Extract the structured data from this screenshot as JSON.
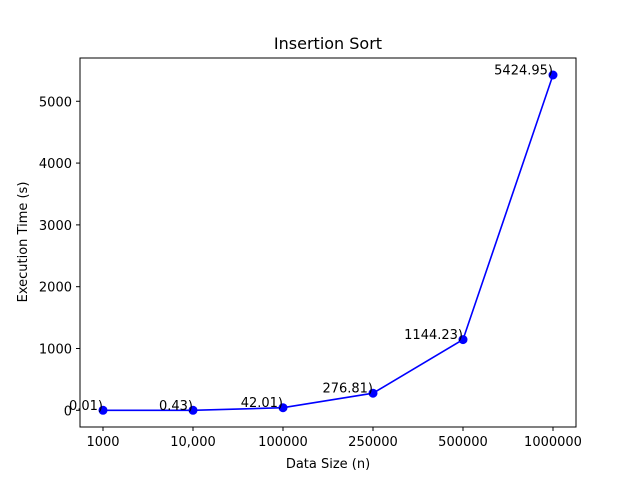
{
  "chart_data": {
    "type": "line",
    "title": "Insertion Sort",
    "xlabel": "Data Size (n)",
    "ylabel": "Execution Time (s)",
    "categories": [
      "1000",
      "10,000",
      "100000",
      "250000",
      "500000",
      "1000000"
    ],
    "values": [
      0.01,
      0.43,
      42.01,
      276.81,
      1144.23,
      5424.95
    ],
    "data_labels": [
      "0.01)",
      "0.43)",
      "42.01)",
      "276.81)",
      "1144.23)",
      "5424.95)"
    ],
    "y_ticks": [
      0,
      1000,
      2000,
      3000,
      4000,
      5000
    ],
    "ylim": [
      -270,
      5700
    ],
    "grid": false,
    "line_color": "#0000ff",
    "marker": "circle"
  }
}
